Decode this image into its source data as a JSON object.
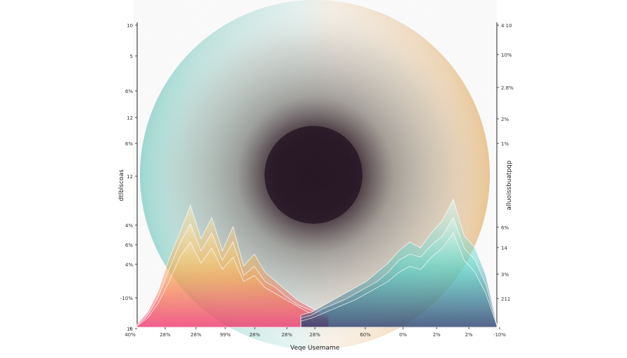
{
  "chart_data": {
    "type": "area",
    "title": "",
    "xlabel": "Veqe Usemame",
    "ylabel_left": "dtlblscoas",
    "ylabel_right": "alluoissbuatpqp",
    "x_tick_labels": [
      "40%",
      "28%",
      "28%",
      "99%",
      "28%",
      "28%",
      "28%",
      "60%",
      "0%",
      "2%",
      "2%",
      "-10%"
    ],
    "y_tick_labels_left": [
      "10",
      "5",
      "6%",
      "12",
      "6%",
      "12",
      "4%",
      "6%",
      "4%",
      "-10%",
      "18"
    ],
    "y_tick_labels_right": [
      "4 10",
      "10%",
      "2.8%",
      "2%",
      "1%",
      "6%",
      "14",
      "3%",
      "211"
    ],
    "series": [
      {
        "values": [
          2,
          10,
          24,
          45,
          62,
          80,
          58,
          72,
          50,
          66,
          40,
          48,
          36,
          30,
          24,
          18,
          14,
          10,
          8
        ]
      },
      {
        "values": [
          1,
          8,
          20,
          38,
          55,
          68,
          50,
          62,
          44,
          56,
          34,
          40,
          30,
          26,
          20,
          15,
          12,
          9,
          7
        ]
      },
      {
        "values": [
          1,
          6,
          16,
          30,
          46,
          56,
          42,
          52,
          38,
          46,
          30,
          34,
          26,
          22,
          18,
          14,
          10,
          8,
          6
        ]
      },
      {
        "values": [
          8,
          10,
          14,
          18,
          22,
          26,
          30,
          36,
          42,
          50,
          56,
          52,
          62,
          70,
          84,
          60,
          52,
          34,
          2
        ]
      },
      {
        "values": [
          6,
          8,
          12,
          15,
          18,
          22,
          26,
          30,
          36,
          44,
          48,
          46,
          54,
          60,
          72,
          52,
          44,
          28,
          1
        ]
      },
      {
        "values": [
          4,
          6,
          9,
          12,
          15,
          18,
          22,
          26,
          30,
          36,
          40,
          38,
          46,
          52,
          62,
          44,
          36,
          22,
          1
        ]
      }
    ],
    "ylim": [
      0,
      100
    ],
    "grid": false,
    "legend": "none",
    "colors": {
      "glow_left": "#7fd1c6",
      "glow_right": "#e9b877",
      "center": "#1a0818",
      "peak_warm_1": "#ffd27a",
      "peak_warm_2": "#f29a3b",
      "peak_warm_3": "#ef2f6c",
      "peak_cool_1": "#6fe3d6",
      "peak_cool_2": "#1b8e8a",
      "peak_cool_3": "#2a3f6e"
    }
  }
}
